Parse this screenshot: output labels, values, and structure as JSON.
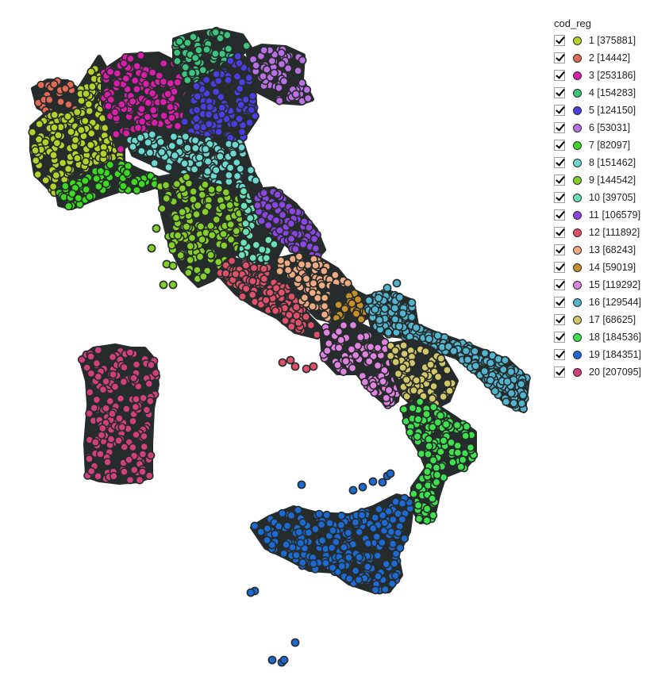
{
  "legend": {
    "title": "cod_reg",
    "items": [
      {
        "code": 1,
        "label": "1 [375881]",
        "color": "#b5d22a"
      },
      {
        "code": 2,
        "label": "2 [14442]",
        "color": "#e06a55"
      },
      {
        "code": 3,
        "label": "3 [253186]",
        "color": "#d91fa9"
      },
      {
        "code": 4,
        "label": "4 [154283]",
        "color": "#3bc57e"
      },
      {
        "code": 5,
        "label": "5 [124150]",
        "color": "#4a3ee0"
      },
      {
        "code": 6,
        "label": "6 [53031]",
        "color": "#b970e4"
      },
      {
        "code": 7,
        "label": "7 [82097]",
        "color": "#3dd922"
      },
      {
        "code": 8,
        "label": "8 [151462]",
        "color": "#6dd8cf"
      },
      {
        "code": 9,
        "label": "9 [144542]",
        "color": "#84cf2c"
      },
      {
        "code": 10,
        "label": "10 [39705]",
        "color": "#6de0b8"
      },
      {
        "code": 11,
        "label": "11 [106579]",
        "color": "#8c46e0"
      },
      {
        "code": 12,
        "label": "12 [111892]",
        "color": "#e0506a"
      },
      {
        "code": 13,
        "label": "13 [68243]",
        "color": "#eeaa82"
      },
      {
        "code": 14,
        "label": "14 [59019]",
        "color": "#c7902a"
      },
      {
        "code": 15,
        "label": "15 [119292]",
        "color": "#df82e0"
      },
      {
        "code": 16,
        "label": "16 [129544]",
        "color": "#52b4cf"
      },
      {
        "code": 17,
        "label": "17 [68625]",
        "color": "#d2c86a"
      },
      {
        "code": 18,
        "label": "18 [184536]",
        "color": "#3ee04e"
      },
      {
        "code": 19,
        "label": "19 [184351]",
        "color": "#1c6ad2"
      },
      {
        "code": 20,
        "label": "20 [207095]",
        "color": "#d0407a"
      }
    ]
  },
  "map": {
    "point_outline_color": "#262b2b"
  }
}
